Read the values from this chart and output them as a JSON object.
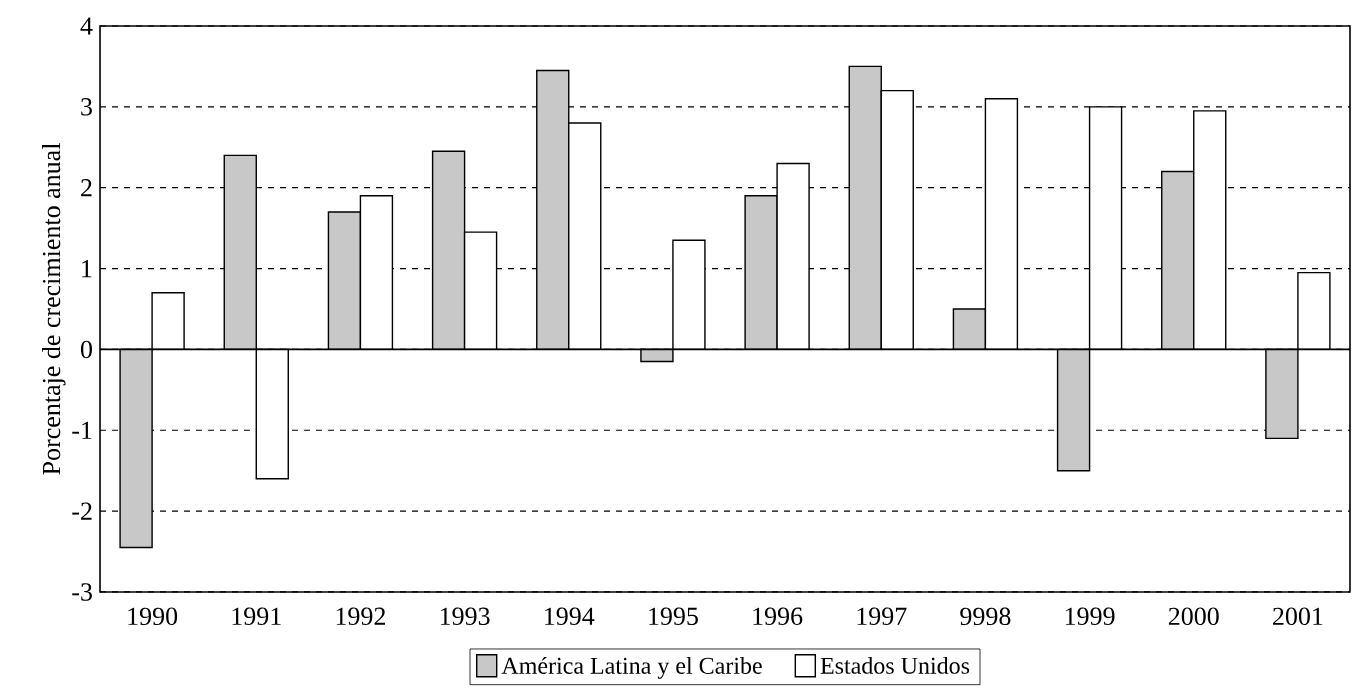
{
  "chart_data": {
    "type": "bar",
    "ylabel": "Porcentaje de crecimiento anual",
    "categories": [
      "1990",
      "1991",
      "1992",
      "1993",
      "1994",
      "1995",
      "1996",
      "1997",
      "9998",
      "1999",
      "2000",
      "2001"
    ],
    "series": [
      {
        "name": "América Latina y el Caribe",
        "color": "#c8c8c8",
        "values": [
          -2.45,
          2.4,
          1.7,
          2.45,
          3.45,
          -0.15,
          1.9,
          3.5,
          0.5,
          -1.5,
          2.2,
          -1.1
        ]
      },
      {
        "name": "Estados Unidos",
        "color": "#ffffff",
        "values": [
          0.7,
          -1.6,
          1.9,
          1.45,
          2.8,
          1.35,
          2.3,
          3.2,
          3.1,
          3.0,
          2.95,
          0.95
        ]
      }
    ],
    "ylim": [
      -3,
      4
    ],
    "yticks": [
      -3,
      -2,
      -1,
      0,
      1,
      2,
      3,
      4
    ],
    "grid": "y",
    "legend": "bottom"
  }
}
